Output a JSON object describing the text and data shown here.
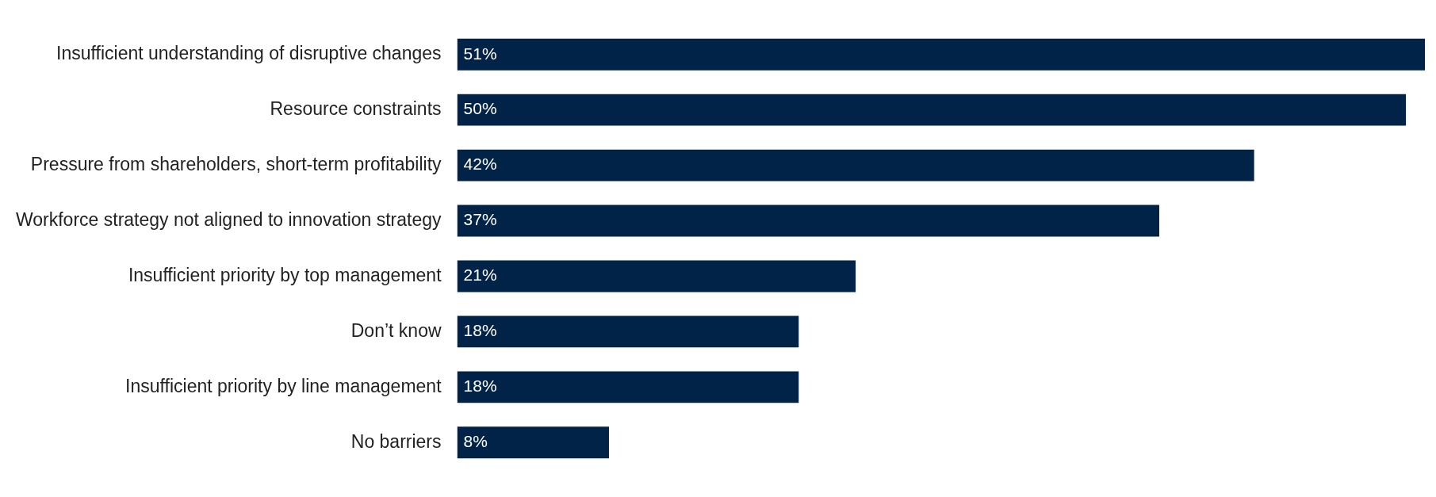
{
  "chart_data": {
    "type": "bar",
    "orientation": "horizontal",
    "categories": [
      "Insufficient understanding of disruptive changes",
      "Resource constraints",
      "Pressure from shareholders, short-term profitability",
      "Workforce strategy not aligned to innovation strategy",
      "Insufficient priority by top management",
      "Don’t know",
      "Insufficient priority by line management",
      "No barriers"
    ],
    "values": [
      51,
      50,
      42,
      37,
      21,
      18,
      18,
      8
    ],
    "value_labels": [
      "51%",
      "50%",
      "42%",
      "37%",
      "21%",
      "18%",
      "18%",
      "8%"
    ],
    "color": "#002347"
  }
}
